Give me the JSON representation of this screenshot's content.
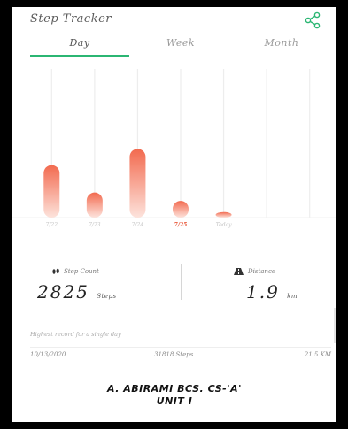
{
  "app": {
    "title": "Step Tracker",
    "share_icon": "share-icon",
    "accent": "#2bb673"
  },
  "tabs": [
    {
      "label": "Day",
      "active": true
    },
    {
      "label": "Week",
      "active": false
    },
    {
      "label": "Month",
      "active": false
    }
  ],
  "chart_data": {
    "type": "bar",
    "categories": [
      "7/22",
      "7/23",
      "7/24",
      "7/25",
      "Today"
    ],
    "highlighted": "7/25",
    "values": [
      2825,
      1350,
      3700,
      900,
      300
    ],
    "ylim": [
      0,
      8000
    ],
    "bar_color_top": "#f26a4f",
    "bar_color_bottom": "#fde3dc"
  },
  "summary": {
    "steps": {
      "label": "Step Count",
      "value": "2825",
      "unit": "Steps",
      "icon": "footprints-icon"
    },
    "distance": {
      "label": "Distance",
      "value": "1.9",
      "unit": "km",
      "icon": "road-icon"
    }
  },
  "record": {
    "label": "Highest record for a single day",
    "date": "10/13/2020",
    "steps": "31818 Steps",
    "distance": "21.5 KM"
  },
  "caption": {
    "line1": "A. ABIRAMI BCS. CS-'A'",
    "line2": "UNIT I"
  }
}
